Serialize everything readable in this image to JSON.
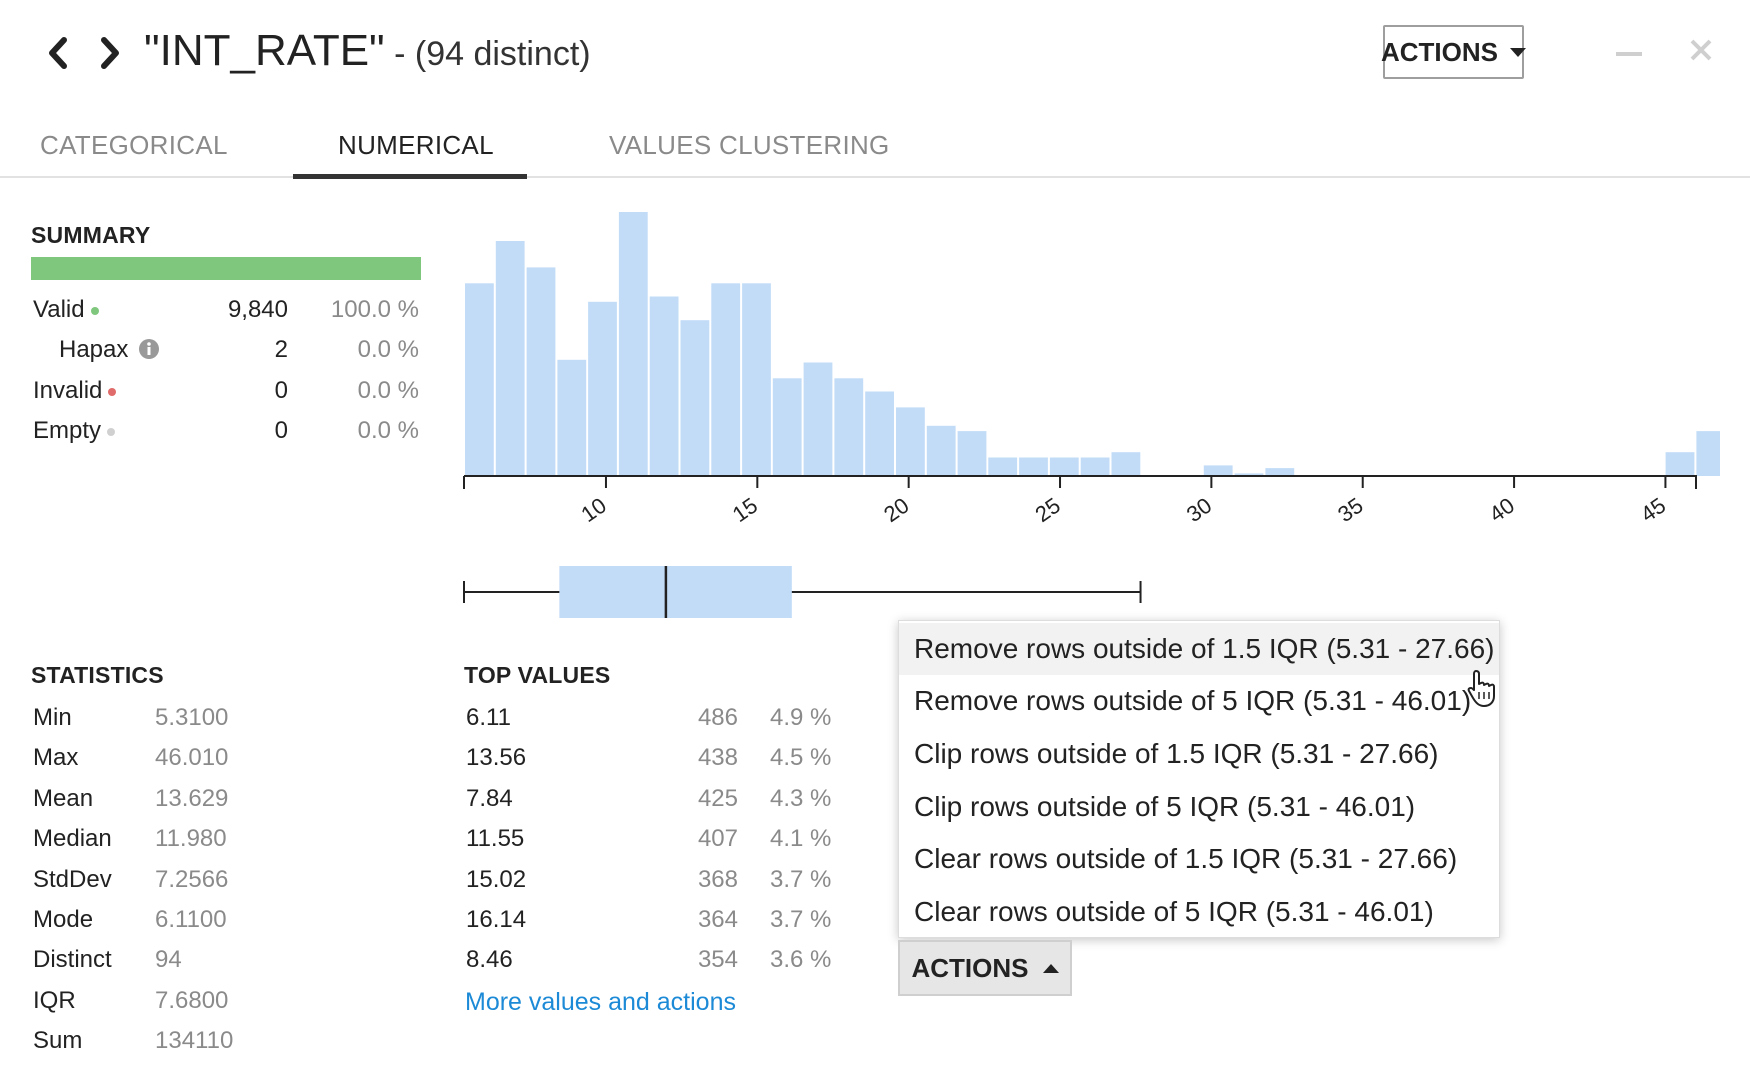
{
  "header": {
    "title": "\"INT_RATE\"",
    "distinct": " - (94 distinct)",
    "actions_label": "ACTIONS"
  },
  "tabs": [
    {
      "label": "CATEGORICAL",
      "active": false
    },
    {
      "label": "NUMERICAL",
      "active": true
    },
    {
      "label": "VALUES CLUSTERING",
      "active": false
    }
  ],
  "summary": {
    "heading": "SUMMARY",
    "rows": [
      {
        "label": "Valid",
        "count": "9,840",
        "pct": "100.0 %",
        "dot_color": "#7fc77d"
      },
      {
        "label": "Hapax",
        "count": "2",
        "pct": "0.0 %"
      },
      {
        "label": "Invalid",
        "count": "0",
        "pct": "0.0 %",
        "dot_color": "#e06b6b"
      },
      {
        "label": "Empty",
        "count": "0",
        "pct": "0.0 %",
        "dot_color": "#d0d0d0"
      }
    ]
  },
  "statistics": {
    "heading": "STATISTICS",
    "rows": [
      {
        "label": "Min",
        "value": "5.3100"
      },
      {
        "label": "Max",
        "value": "46.010"
      },
      {
        "label": "Mean",
        "value": "13.629"
      },
      {
        "label": "Median",
        "value": "11.980"
      },
      {
        "label": "StdDev",
        "value": "7.2566"
      },
      {
        "label": "Mode",
        "value": "6.1100"
      },
      {
        "label": "Distinct",
        "value": "94"
      },
      {
        "label": "IQR",
        "value": "7.6800"
      },
      {
        "label": "Sum",
        "value": "134110"
      }
    ]
  },
  "top_values": {
    "heading": "TOP VALUES",
    "rows": [
      {
        "value": "6.11",
        "count": "486",
        "pct": "4.9 %"
      },
      {
        "value": "13.56",
        "count": "438",
        "pct": "4.5 %"
      },
      {
        "value": "7.84",
        "count": "425",
        "pct": "4.3 %"
      },
      {
        "value": "11.55",
        "count": "407",
        "pct": "4.1 %"
      },
      {
        "value": "15.02",
        "count": "368",
        "pct": "3.7 %"
      },
      {
        "value": "16.14",
        "count": "364",
        "pct": "3.7 %"
      },
      {
        "value": "8.46",
        "count": "354",
        "pct": "3.6 %"
      }
    ],
    "more_link": "More values and actions"
  },
  "menu": {
    "items": [
      "Remove rows outside of 1.5 IQR (5.31 - 27.66)",
      "Remove rows outside of 5 IQR (5.31 - 46.01)",
      "Clip rows outside of 1.5 IQR (5.31 - 27.66)",
      "Clip rows outside of 5 IQR (5.31 - 46.01)",
      "Clear rows outside of 1.5 IQR (5.31 - 27.66)",
      "Clear rows outside of 5 IQR (5.31 - 46.01)"
    ],
    "hovered_index": 0,
    "actions_label": "ACTIONS"
  },
  "chart_data": {
    "type": "bar",
    "bar_color": "#c2dcf8",
    "x_range": [
      5.31,
      46.01
    ],
    "bin_width": 1.017,
    "bins_start": 5.31,
    "relative_heights": [
      0.73,
      0.89,
      0.79,
      0.44,
      0.66,
      1.0,
      0.68,
      0.59,
      0.73,
      0.73,
      0.37,
      0.43,
      0.37,
      0.32,
      0.26,
      0.19,
      0.17,
      0.07,
      0.07,
      0.07,
      0.07,
      0.09,
      0,
      0,
      0.04,
      0.01,
      0.03,
      0,
      0,
      0,
      0,
      0,
      0,
      0,
      0,
      0,
      0,
      0,
      0,
      0.09,
      0.17
    ],
    "ticks": [
      10,
      15,
      20,
      25,
      30,
      35,
      40,
      45
    ],
    "boxplot": {
      "min": 5.31,
      "q1": 8.46,
      "median": 11.98,
      "q3": 16.14,
      "whisker_high": 27.66
    }
  }
}
